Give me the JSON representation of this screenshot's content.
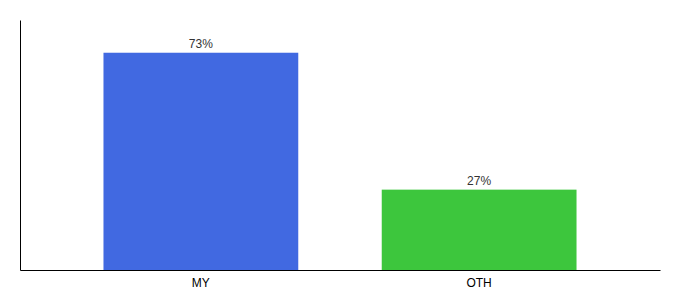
{
  "chart_data": {
    "type": "bar",
    "categories": [
      "MY",
      "OTH"
    ],
    "values": [
      73,
      27
    ],
    "value_labels": [
      "73%",
      "27%"
    ],
    "colors": [
      "#4169E1",
      "#3DC63D"
    ],
    "ylim": [
      0,
      84
    ],
    "data_labels": true,
    "tick_labels": "x"
  }
}
